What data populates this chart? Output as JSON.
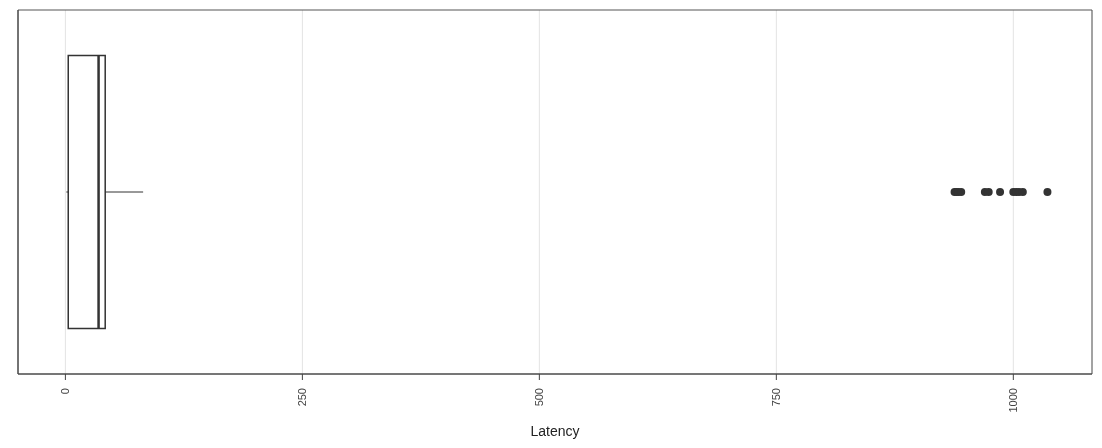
{
  "chart_data": {
    "type": "box",
    "orientation": "horizontal",
    "categories": [
      null
    ],
    "boxes": [
      {
        "low": 1,
        "q1": 3,
        "median": 35,
        "q3": 42,
        "high": 82,
        "outliers": [
          938,
          940,
          942,
          945,
          970,
          974,
          986,
          1000,
          1003,
          1006,
          1010,
          1036
        ]
      }
    ],
    "color": "#333333",
    "xlabel": "Latency",
    "xlim": [
      -50,
      1083
    ],
    "xticks": [
      0,
      250,
      500,
      750,
      1000
    ],
    "grid": true,
    "tick_labels": "x"
  }
}
